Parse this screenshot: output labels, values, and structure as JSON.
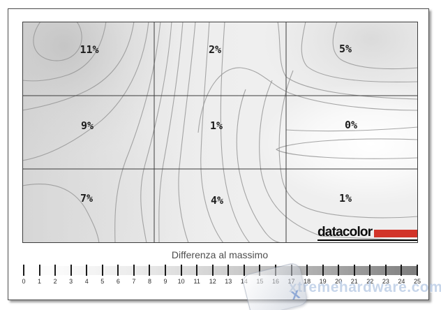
{
  "plot": {
    "cells": [
      "11%",
      "2%",
      "5%",
      "9%",
      "1%",
      "0%",
      "7%",
      "4%",
      "1%"
    ],
    "logo_text": "datacolor"
  },
  "colorbar": {
    "label": "Differenza al massimo",
    "ticks": [
      "0",
      "1",
      "2",
      "3",
      "4",
      "5",
      "6",
      "7",
      "8",
      "9",
      "10",
      "11",
      "12",
      "13",
      "14",
      "15",
      "16",
      "17",
      "18",
      "19",
      "20",
      "21",
      "22",
      "23",
      "24",
      "25"
    ]
  },
  "watermark": {
    "text": "xtremehardware.com",
    "badge_glyph": "x"
  },
  "colors": {
    "logo_red": "#d2342a",
    "contour_line": "#979797"
  },
  "chart_data": {
    "type": "heatmap",
    "subtype": "contour-uniformity-map",
    "title": "Differenza al massimo",
    "grid": {
      "rows": 3,
      "cols": 3
    },
    "values_percent": [
      [
        11,
        2,
        5
      ],
      [
        9,
        1,
        0
      ],
      [
        7,
        4,
        1
      ]
    ],
    "unit": "%",
    "value_labels": [
      [
        "11%",
        "2%",
        "5%"
      ],
      [
        "9%",
        "1%",
        "0%"
      ],
      [
        "7%",
        "4%",
        "1%"
      ]
    ],
    "max_cell": {
      "row": 0,
      "col": 0,
      "value": 11
    },
    "min_cell": {
      "row": 1,
      "col": 2,
      "value": 0
    },
    "colorbar": {
      "min": 0,
      "max": 25,
      "tick_step": 1,
      "orientation": "horizontal",
      "label": "Differenza al massimo",
      "low_color": "#ffffff",
      "high_color": "#7e7e7e"
    },
    "branding": "datacolor"
  }
}
